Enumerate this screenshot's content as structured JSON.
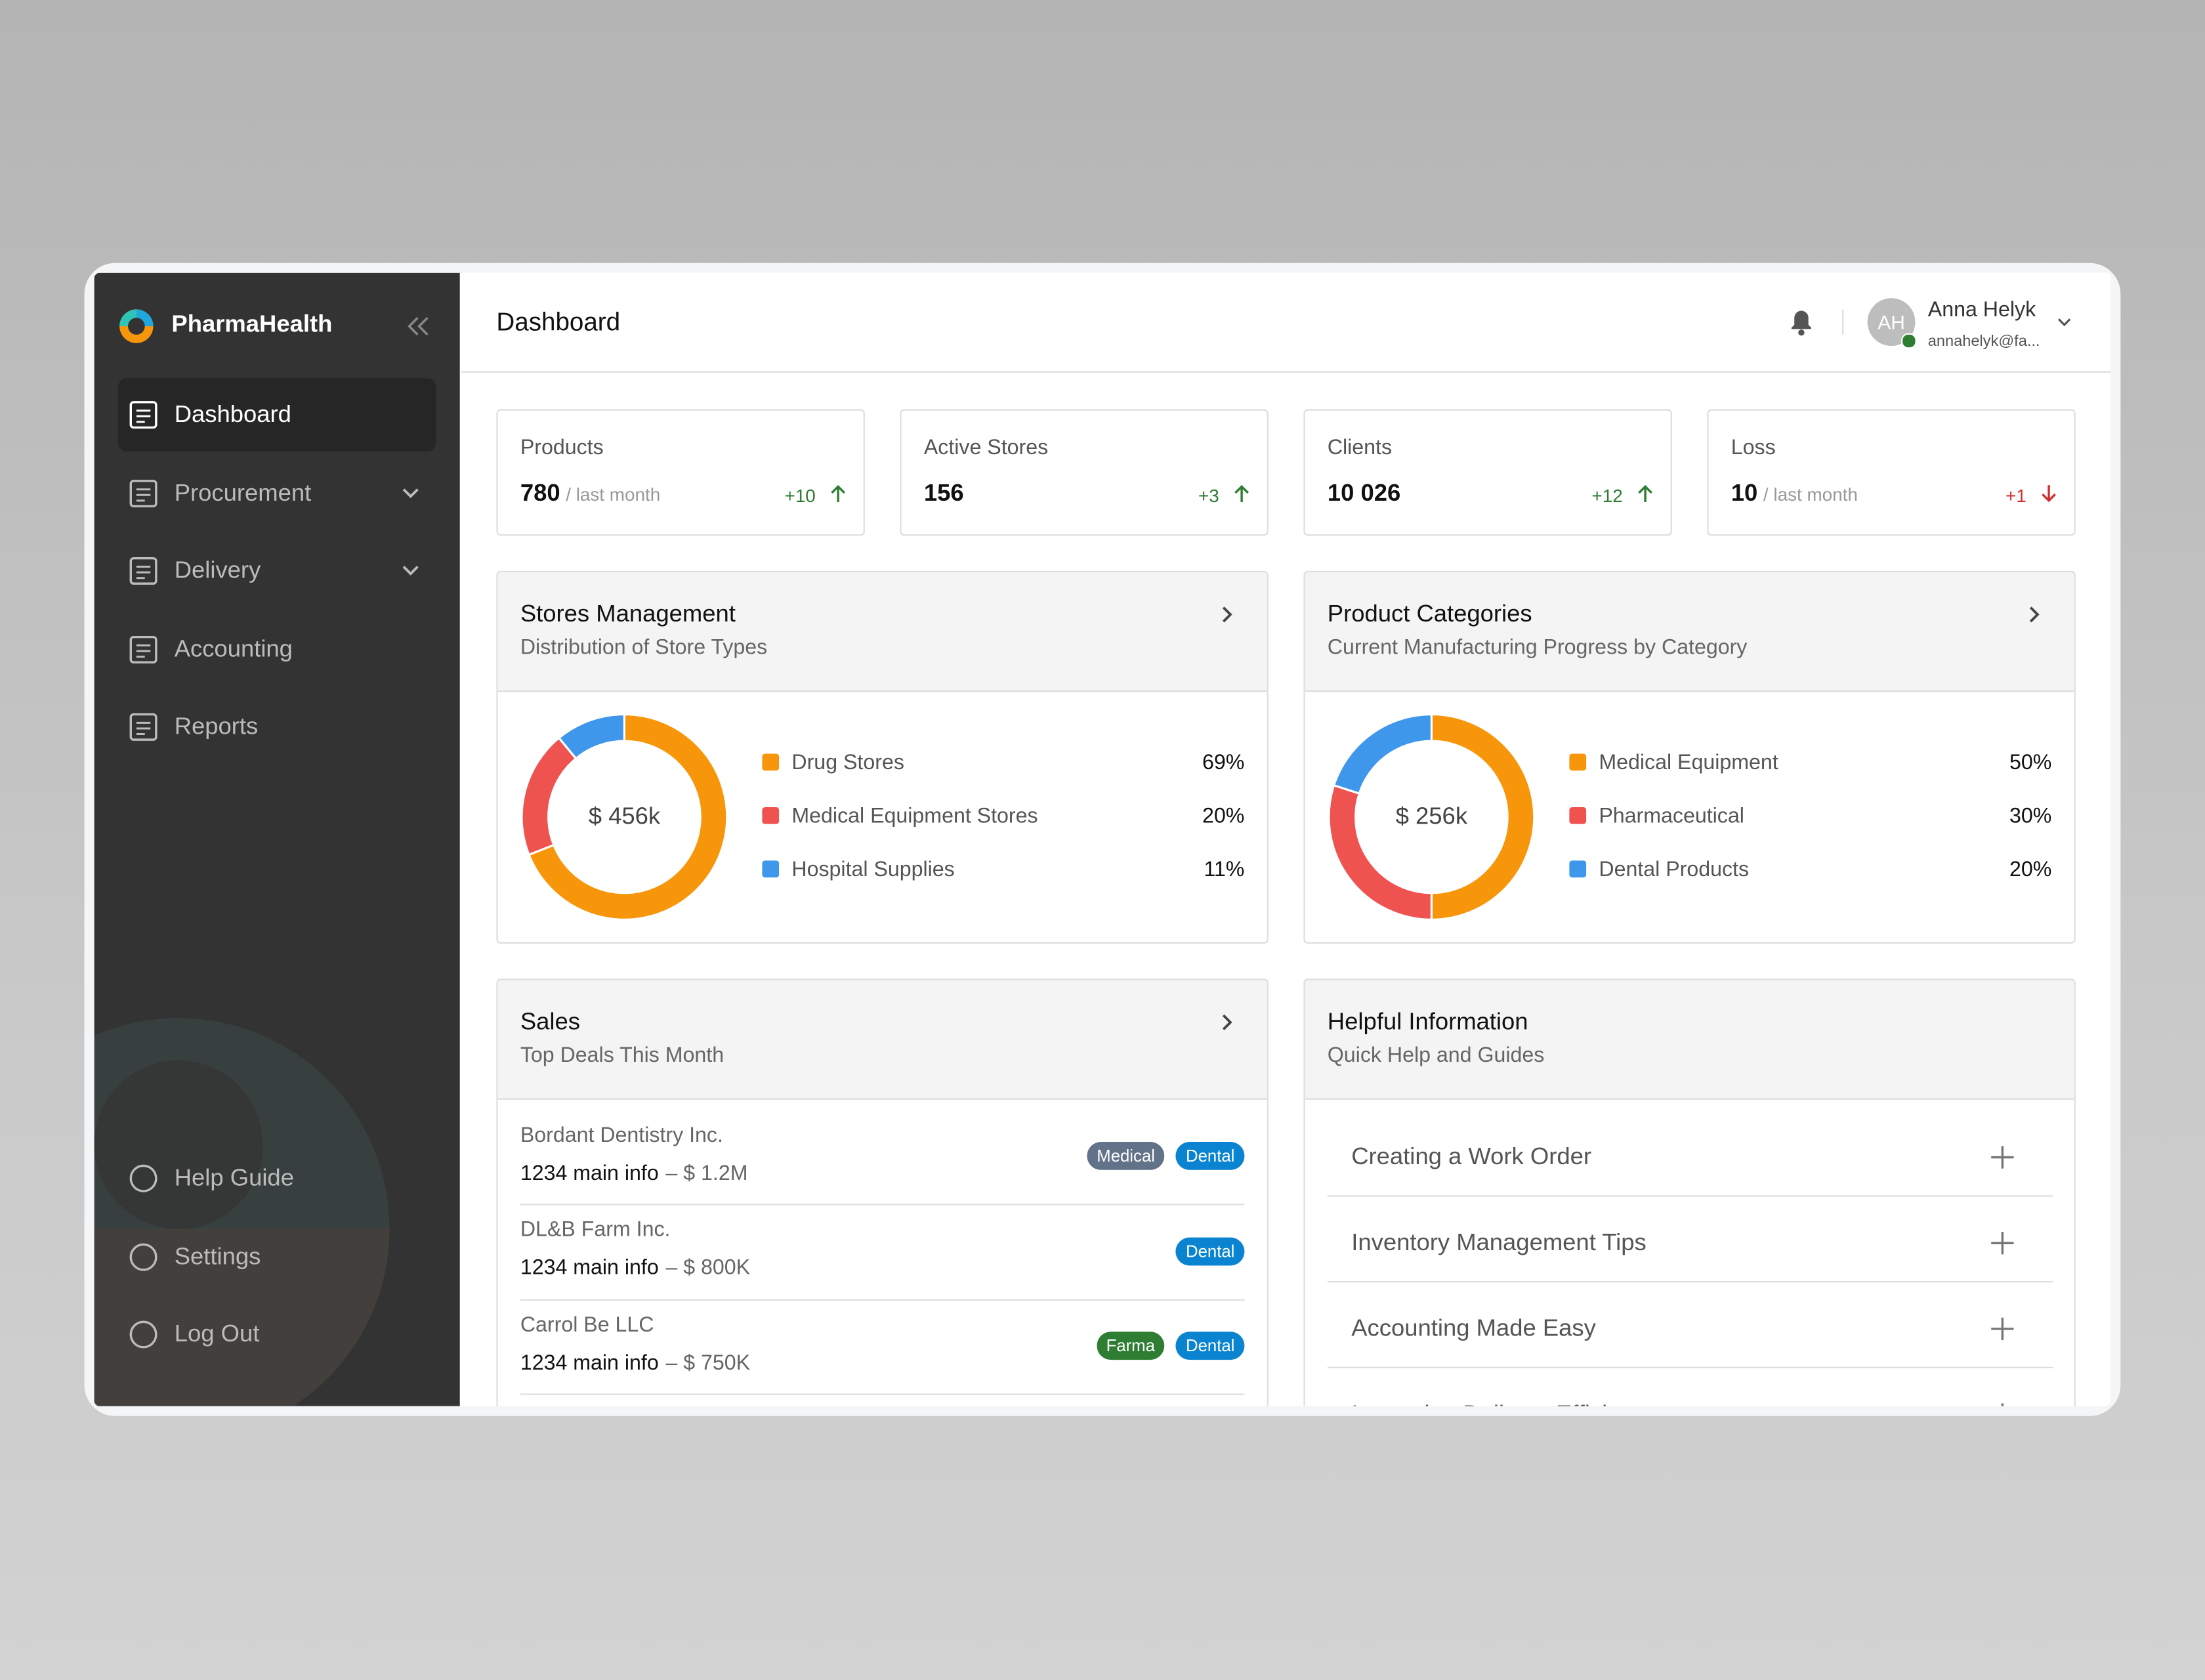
{
  "brand": "PharmaHealth",
  "nav": {
    "items": [
      {
        "label": "Dashboard",
        "active": true,
        "expandable": false
      },
      {
        "label": "Procurement",
        "active": false,
        "expandable": true
      },
      {
        "label": "Delivery",
        "active": false,
        "expandable": true
      },
      {
        "label": "Accounting",
        "active": false,
        "expandable": false
      },
      {
        "label": "Reports",
        "active": false,
        "expandable": false
      }
    ],
    "bottom": [
      "Help Guide",
      "Settings",
      "Log Out"
    ]
  },
  "header": {
    "title": "Dashboard",
    "user": {
      "initials": "AH",
      "name": "Anna Helyk",
      "email": "annahelyk@fa..."
    }
  },
  "stats": [
    {
      "label": "Products",
      "value": "780",
      "suffix": "/ last month",
      "delta": "+10",
      "trend": "up"
    },
    {
      "label": "Active Stores",
      "value": "156",
      "delta": "+3",
      "trend": "up"
    },
    {
      "label": "Clients",
      "value": "10 026",
      "delta": "+12",
      "trend": "up"
    },
    {
      "label": "Loss",
      "value": "10",
      "suffix": "/ last month",
      "delta": "+1",
      "trend": "down"
    }
  ],
  "donuts": [
    {
      "type": "donut",
      "title": "Stores Management",
      "subtitle": "Distribution of Store Types",
      "total": "$ 456k",
      "categories": [
        "Drug Stores",
        "Medical Equipment Stores",
        "Hospital Supplies"
      ],
      "values": [
        69,
        20,
        11
      ],
      "value_labels": [
        "69%",
        "20%",
        "11%"
      ],
      "colors": [
        "#f7960b",
        "#ef5350",
        "#3f97ec"
      ]
    },
    {
      "type": "donut",
      "title": "Product Categories",
      "subtitle": "Current Manufacturing Progress by Category",
      "total": "$ 256k",
      "categories": [
        "Medical Equipment",
        "Pharmaceutical",
        "Dental Products"
      ],
      "values": [
        50,
        30,
        20
      ],
      "value_labels": [
        "50%",
        "30%",
        "20%"
      ],
      "colors": [
        "#f7960b",
        "#ef5350",
        "#3f97ec"
      ]
    }
  ],
  "sales": {
    "title": "Sales",
    "subtitle": "Top Deals This Month",
    "rows": [
      {
        "name": "Bordant Dentistry Inc.",
        "info": "1234 main info",
        "amount": "– $ 1.2M",
        "tags": [
          {
            "text": "Medical",
            "color": "#627289"
          },
          {
            "text": "Dental",
            "color": "#0a84d0"
          }
        ]
      },
      {
        "name": "DL&B Farm Inc.",
        "info": "1234 main info",
        "amount": "– $ 800K",
        "tags": [
          {
            "text": "Dental",
            "color": "#0a84d0"
          }
        ]
      },
      {
        "name": "Carrol Be LLC",
        "info": "1234 main info",
        "amount": "– $ 750K",
        "tags": [
          {
            "text": "Farma",
            "color": "#2e7d32"
          },
          {
            "text": "Dental",
            "color": "#0a84d0"
          }
        ]
      }
    ]
  },
  "help": {
    "title": "Helpful Information",
    "subtitle": "Quick Help and Guides",
    "items": [
      "Creating a Work Order",
      "Inventory Management Tips",
      "Accounting Made Easy",
      "Improving Delivery Efficiency"
    ]
  }
}
